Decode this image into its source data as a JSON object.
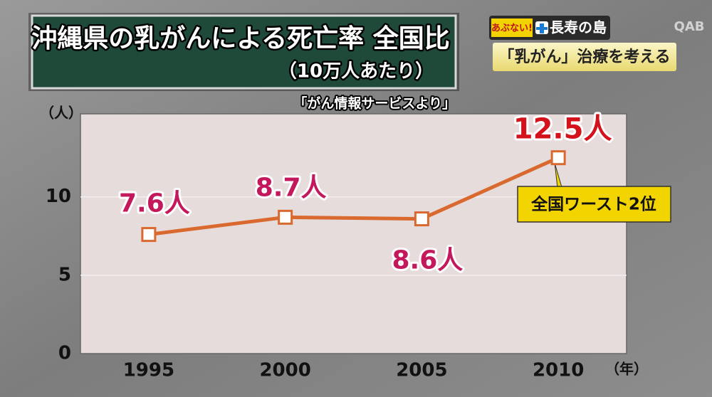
{
  "chart_data": {
    "type": "line",
    "title": "沖縄県の乳がんによる死亡率 全国比",
    "subtitle": "（10万人あたり）",
    "source": "「がん情報サービスより」",
    "y_label": "（人）",
    "x_label": "（年）",
    "categories": [
      "1995",
      "2000",
      "2005",
      "2010"
    ],
    "values": [
      7.6,
      8.7,
      8.6,
      12.5
    ],
    "value_labels": [
      "7.6人",
      "8.7人",
      "8.6人",
      "12.5人"
    ],
    "color": "#d9692e",
    "ylim": [
      0,
      15.3
    ],
    "yticks": [
      0,
      5,
      10
    ],
    "grid": true,
    "annotation": "全国ワースト2位",
    "corner_badge": "あぶない!",
    "corner_series": "長寿の島",
    "corner_topic": "「乳がん」治療を考える",
    "station": "QAB"
  }
}
